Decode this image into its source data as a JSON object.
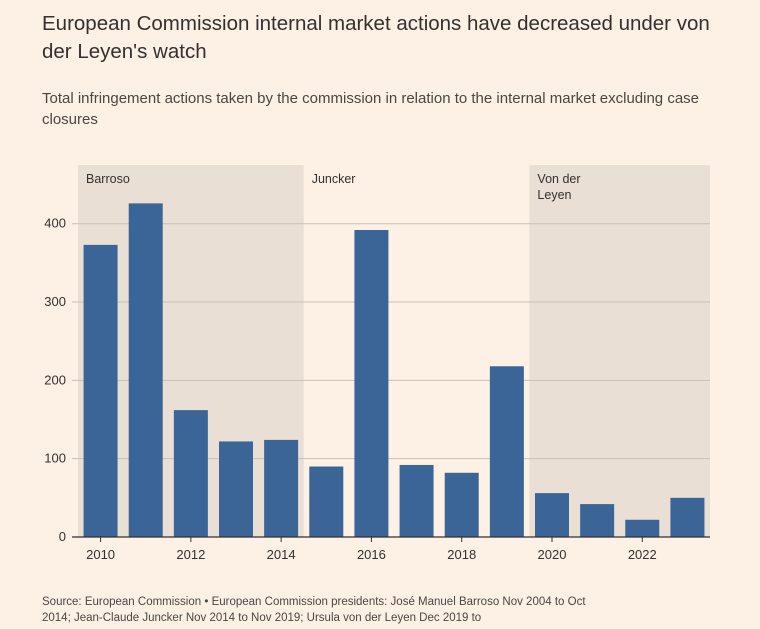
{
  "header": {
    "title": "European Commission internal market actions have decreased under von der Leyen's watch",
    "subtitle": "Total infringement actions taken by the commission in relation to the internal market excluding case closures"
  },
  "footer": {
    "source": "Source: European Commission • European Commission presidents: José Manuel Barroso Nov 2004 to Oct 2014; Jean-Claude Juncker Nov 2014 to Nov 2019; Ursula von der Leyen Dec 2019 to"
  },
  "colors": {
    "bar": "#3a6596",
    "shade": "#eadfd5",
    "grid": "#c9bfb5",
    "background": "#fdf1e5"
  },
  "chart_data": {
    "type": "bar",
    "categories": [
      "2010",
      "2011",
      "2012",
      "2013",
      "2014",
      "2015",
      "2016",
      "2017",
      "2018",
      "2019",
      "2020",
      "2021",
      "2022",
      "2023"
    ],
    "values": [
      373,
      426,
      162,
      122,
      124,
      90,
      392,
      92,
      82,
      218,
      56,
      42,
      22,
      50
    ],
    "ylim": [
      0,
      475
    ],
    "yticks": [
      0,
      100,
      200,
      300,
      400
    ],
    "xticks": [
      "2010",
      "2012",
      "2014",
      "2016",
      "2018",
      "2020",
      "2022"
    ],
    "grid": true,
    "periods": [
      {
        "label": "Barroso",
        "start": "2010",
        "end": "2014",
        "shaded": true
      },
      {
        "label": "Juncker",
        "start": "2015",
        "end": "2019",
        "shaded": false
      },
      {
        "label": "Von der Leyen",
        "start": "2020",
        "end": "2023",
        "shaded": true
      }
    ]
  }
}
